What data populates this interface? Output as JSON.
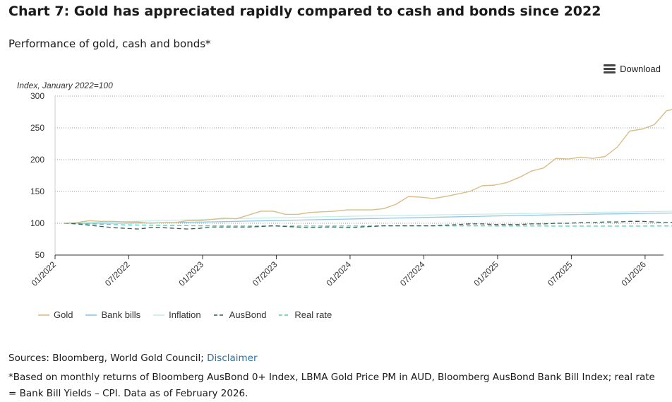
{
  "chart_data": {
    "type": "line",
    "title": "Chart 7: Gold has appreciated rapidly compared to cash and bonds since 2022",
    "subtitle": "Performance of gold, cash and bonds*",
    "ylabel": "Index, January 2022=100",
    "xlabel": "",
    "ylim": [
      50,
      300
    ],
    "yticks": [
      50,
      100,
      150,
      200,
      250,
      300
    ],
    "xlim": [
      0,
      49.5
    ],
    "xticks": [
      {
        "label": "01/2022",
        "value": 0
      },
      {
        "label": "07/2022",
        "value": 6
      },
      {
        "label": "01/2023",
        "value": 12
      },
      {
        "label": "07/2023",
        "value": 18
      },
      {
        "label": "01/2024",
        "value": 24
      },
      {
        "label": "07/2024",
        "value": 30
      },
      {
        "label": "01/2025",
        "value": 36
      },
      {
        "label": "07/2025",
        "value": 42
      },
      {
        "label": "01/2026",
        "value": 48
      }
    ],
    "grid": "horizontal",
    "legend_position": "bottom-left",
    "series": [
      {
        "name": "Gold",
        "color": "#d9bc87",
        "dash": "solid",
        "values": [
          100,
          101,
          104,
          103,
          103,
          102,
          102,
          100,
          101,
          101,
          104,
          104,
          106,
          108,
          107,
          113,
          119,
          119,
          114,
          114,
          117,
          118,
          119,
          121,
          121,
          121,
          123,
          130,
          142,
          141,
          139,
          142,
          146,
          150,
          159,
          160,
          164,
          172,
          182,
          187,
          202,
          201,
          204,
          202,
          205,
          220,
          245,
          248,
          255,
          277,
          281
        ]
      },
      {
        "name": "Bank bills",
        "color": "#8fc6ea",
        "dash": "solid",
        "values": [
          100,
          100,
          100,
          100,
          100,
          100,
          100.4,
          100.6,
          100.9,
          101.2,
          101.5,
          101.8,
          102.2,
          102.6,
          103,
          103.4,
          103.8,
          104.2,
          104.6,
          105,
          105.4,
          105.8,
          106.2,
          106.6,
          107,
          107.4,
          107.8,
          108.2,
          108.6,
          109,
          109.4,
          109.8,
          110.2,
          110.6,
          111,
          111.4,
          111.8,
          112.2,
          112.6,
          113,
          113.3,
          113.6,
          113.9,
          114.2,
          114.5,
          114.8,
          115.1,
          115.4,
          115.7,
          116,
          116.3
        ]
      },
      {
        "name": "Inflation",
        "color": "#c9ede6",
        "dash": "solid",
        "values": [
          100,
          100.5,
          101,
          101.5,
          102,
          102.6,
          103.2,
          103.8,
          104.3,
          104.8,
          105.3,
          105.8,
          106.3,
          106.8,
          107.3,
          107.7,
          108.1,
          108.5,
          108.9,
          109.3,
          109.7,
          110.1,
          110.5,
          110.9,
          111.3,
          111.6,
          111.9,
          112.2,
          112.5,
          112.8,
          113.1,
          113.4,
          113.7,
          114,
          114.3,
          114.6,
          114.9,
          115.2,
          115.5,
          115.8,
          116.1,
          116.4,
          116.7,
          117,
          117.3,
          117.6,
          117.9,
          118.2,
          118.5,
          118.8,
          119
        ]
      },
      {
        "name": "AusBond",
        "color": "#2f5e52",
        "dash": "6,4",
        "values": [
          100,
          99,
          97,
          95,
          93,
          92,
          91,
          93,
          93,
          92,
          91,
          92,
          94,
          94,
          94,
          94,
          95,
          96,
          95,
          94,
          93,
          94,
          94,
          93,
          94,
          95,
          96,
          96,
          96,
          96,
          96,
          97,
          98,
          99,
          99,
          98,
          98,
          98,
          99,
          99,
          100,
          100,
          101,
          101,
          102,
          102,
          103,
          103,
          102,
          101,
          102
        ]
      },
      {
        "name": "Real rate",
        "color": "#4fd1a9",
        "dash": "6,4",
        "values": [
          100,
          99.5,
          99,
          98.5,
          98,
          97.4,
          97.2,
          96.8,
          96.6,
          96.4,
          96.2,
          96,
          95.9,
          95.8,
          95.7,
          95.7,
          95.7,
          95.7,
          95.7,
          95.7,
          95.7,
          95.7,
          95.7,
          95.7,
          95.7,
          95.8,
          95.9,
          95.9,
          95.9,
          95.9,
          95.9,
          95.9,
          95.9,
          95.9,
          95.9,
          95.8,
          95.8,
          95.8,
          95.7,
          95.7,
          95.6,
          95.6,
          95.6,
          95.6,
          95.6,
          95.6,
          95.6,
          95.6,
          95.7,
          95.7,
          95.7
        ]
      }
    ]
  },
  "download_label": "Download",
  "sources": {
    "prefix": "Sources: Bloomberg, World Gold Council; ",
    "link": "Disclaimer"
  },
  "footnote": "*Based on monthly returns of Bloomberg AusBond 0+ Index, LBMA Gold Price PM in AUD, Bloomberg AusBond Bank Bill Index; real rate = Bank Bill Yields – CPI. Data as of February 2026."
}
